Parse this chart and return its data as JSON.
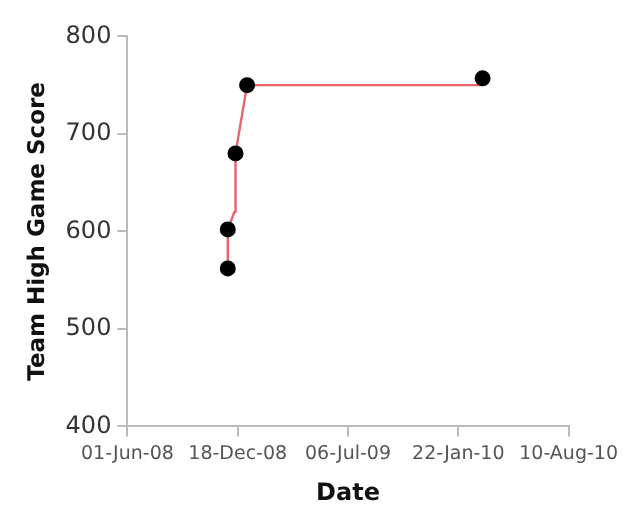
{
  "chart_data": {
    "type": "scatter",
    "xlabel": "Date",
    "ylabel": "Team High Game Score",
    "xlim": [
      "2008-06-01",
      "2010-08-10"
    ],
    "xticks": [
      {
        "value": "2008-06-01",
        "label": "01-Jun-08"
      },
      {
        "value": "2008-12-18",
        "label": "18-Dec-08"
      },
      {
        "value": "2009-07-06",
        "label": "06-Jul-09"
      },
      {
        "value": "2010-01-22",
        "label": "22-Jan-10"
      },
      {
        "value": "2010-08-10",
        "label": "10-Aug-10"
      }
    ],
    "ylim": [
      400,
      800
    ],
    "yticks": [
      400,
      500,
      600,
      700,
      800
    ],
    "grid": false,
    "legend": false,
    "series": [
      {
        "type": "line",
        "color": "#e8636b",
        "marker": "none",
        "x": [
          "2008-11-30",
          "2008-11-30",
          "2008-12-12",
          "2008-12-14",
          "2009-01-04",
          "2010-03-07"
        ],
        "values": [
          562,
          602,
          620,
          680,
          750,
          750
        ]
      },
      {
        "type": "scatter",
        "color": "#000000",
        "marker": "circle",
        "x": [
          "2008-11-30",
          "2008-11-30",
          "2008-12-14",
          "2009-01-04",
          "2010-03-07"
        ],
        "values": [
          562,
          602,
          680,
          750,
          757
        ]
      }
    ]
  }
}
